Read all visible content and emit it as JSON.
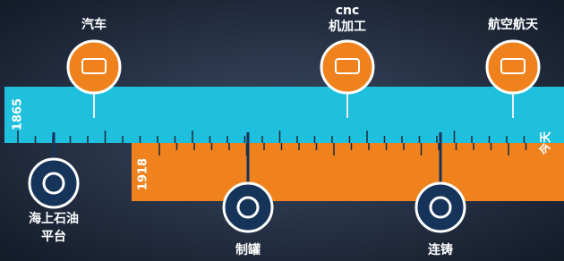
{
  "timeline": {
    "start": "1865",
    "second_start": "1918",
    "end": "今天"
  },
  "top_events": [
    {
      "lines": [
        "汽车"
      ]
    },
    {
      "lines": [
        "cnc",
        "机加工"
      ]
    },
    {
      "lines": [
        "航空航天"
      ]
    }
  ],
  "bottom_events": [
    {
      "lines": [
        "海上石油",
        "平台"
      ]
    },
    {
      "lines": [
        "制罐"
      ]
    },
    {
      "lines": [
        "连铸"
      ]
    }
  ]
}
